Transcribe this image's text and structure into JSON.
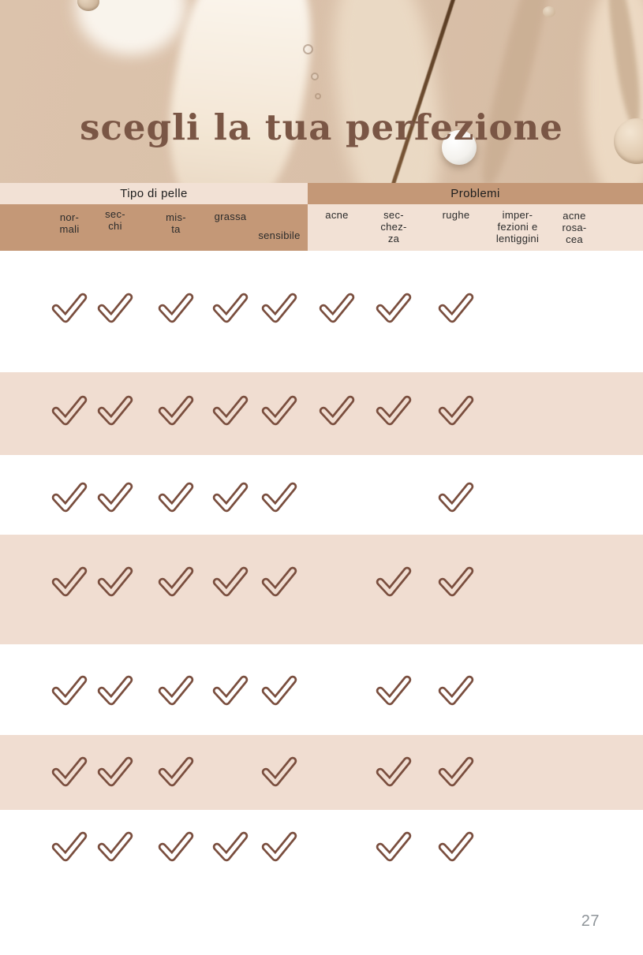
{
  "title": "scegli la tua perfezione",
  "header": {
    "skin_type_group": "Tipo di pelle",
    "problems_group": "Problemi"
  },
  "columns": [
    {
      "id": "normali",
      "group": "tipo",
      "lines": [
        "nor-",
        "mali"
      ]
    },
    {
      "id": "secchi",
      "group": "tipo",
      "lines": [
        "sec-",
        "chi"
      ]
    },
    {
      "id": "mista",
      "group": "tipo",
      "lines": [
        "mis-",
        "ta"
      ]
    },
    {
      "id": "grassa",
      "group": "tipo",
      "lines": [
        "grassa"
      ]
    },
    {
      "id": "sensibile",
      "group": "tipo",
      "lines": [
        "sensibile"
      ]
    },
    {
      "id": "acne",
      "group": "problemi",
      "lines": [
        "acne"
      ]
    },
    {
      "id": "secchezza",
      "group": "problemi",
      "lines": [
        "sec-",
        "chez-",
        "za"
      ]
    },
    {
      "id": "rughe",
      "group": "problemi",
      "lines": [
        "rughe"
      ]
    },
    {
      "id": "imperfezioni",
      "group": "problemi",
      "lines": [
        "imper-",
        "fezioni e",
        "lentiggini"
      ]
    },
    {
      "id": "acne-rosacea",
      "group": "problemi",
      "lines": [
        "acne",
        "rosa-",
        "cea"
      ]
    }
  ],
  "matrix_rows": [
    {
      "checks": [
        true,
        true,
        true,
        true,
        true,
        true,
        true,
        true,
        false,
        false
      ]
    },
    {
      "checks": [
        true,
        true,
        true,
        true,
        true,
        true,
        true,
        true,
        false,
        false
      ]
    },
    {
      "checks": [
        true,
        true,
        true,
        true,
        true,
        false,
        false,
        true,
        false,
        false
      ]
    },
    {
      "checks": [
        true,
        true,
        true,
        true,
        true,
        false,
        true,
        true,
        false,
        false
      ]
    },
    {
      "checks": [
        true,
        true,
        true,
        true,
        true,
        false,
        true,
        true,
        false,
        false
      ]
    },
    {
      "checks": [
        true,
        true,
        true,
        false,
        true,
        false,
        true,
        true,
        false,
        false
      ]
    },
    {
      "checks": [
        true,
        true,
        true,
        true,
        true,
        false,
        true,
        true,
        false,
        false
      ]
    }
  ],
  "page_number": "27",
  "colors": {
    "accent_brown": "#7a4e3e",
    "header_tan": "#c49877",
    "header_light": "#f2e1d5",
    "row_pink": "#f0ddd1",
    "row_white": "#ffffff",
    "title_brown": "#7a5645",
    "photo_beige": "#d9c0a9",
    "page_number_gray": "#8f959a"
  }
}
